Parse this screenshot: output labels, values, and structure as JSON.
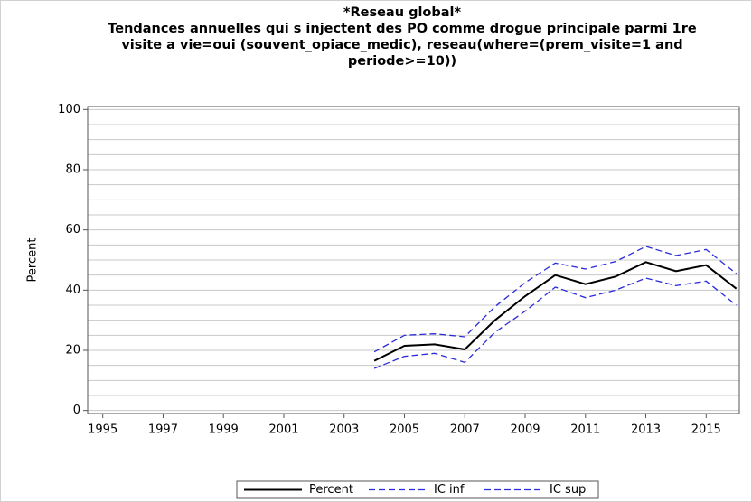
{
  "chart_data": {
    "type": "line",
    "title": "*Reseau global*",
    "subtitle": [
      "Tendances annuelles qui s injectent des PO comme drogue principale parmi 1re",
      "visite a vie=oui (souvent_opiace_medic), reseau(where=(prem_visite=1 and",
      "periode>=10))"
    ],
    "y_label": "Percent",
    "x": [
      2004,
      2005,
      2006,
      2007,
      2008,
      2009,
      2010,
      2011,
      2012,
      2013,
      2014,
      2015,
      2016
    ],
    "series": [
      {
        "name": "Percent",
        "color": "#000000",
        "dash": "solid",
        "values": [
          16.5,
          21.5,
          22,
          20.3,
          30,
          38,
          45,
          42,
          44.5,
          49.3,
          46.3,
          48.3,
          40.5
        ]
      },
      {
        "name": "IC inf",
        "color": "#2b2bd9",
        "dash": "dashed",
        "values": [
          14,
          18,
          19,
          16,
          26,
          33,
          41,
          37.5,
          40,
          44,
          41.5,
          43,
          35
        ]
      },
      {
        "name": "IC sup",
        "color": "#2b2bd9",
        "dash": "dashed",
        "values": [
          19.5,
          25,
          25.5,
          24.5,
          34.5,
          42.5,
          49,
          47,
          49.5,
          54.5,
          51.5,
          53.5,
          45.5
        ]
      }
    ],
    "xlim": [
      1994.5,
      2016.1
    ],
    "xticks": [
      1995,
      1997,
      1999,
      2001,
      2003,
      2005,
      2007,
      2009,
      2011,
      2013,
      2015
    ],
    "ylim": [
      -1,
      101
    ],
    "yticks": [
      0,
      20,
      40,
      60,
      80,
      100
    ],
    "ygrid": [
      0,
      5,
      10,
      15,
      20,
      25,
      30,
      35,
      40,
      45,
      50,
      55,
      60,
      65,
      70,
      75,
      80,
      85,
      90,
      95,
      100
    ],
    "grid": true,
    "legend": "bottom"
  }
}
